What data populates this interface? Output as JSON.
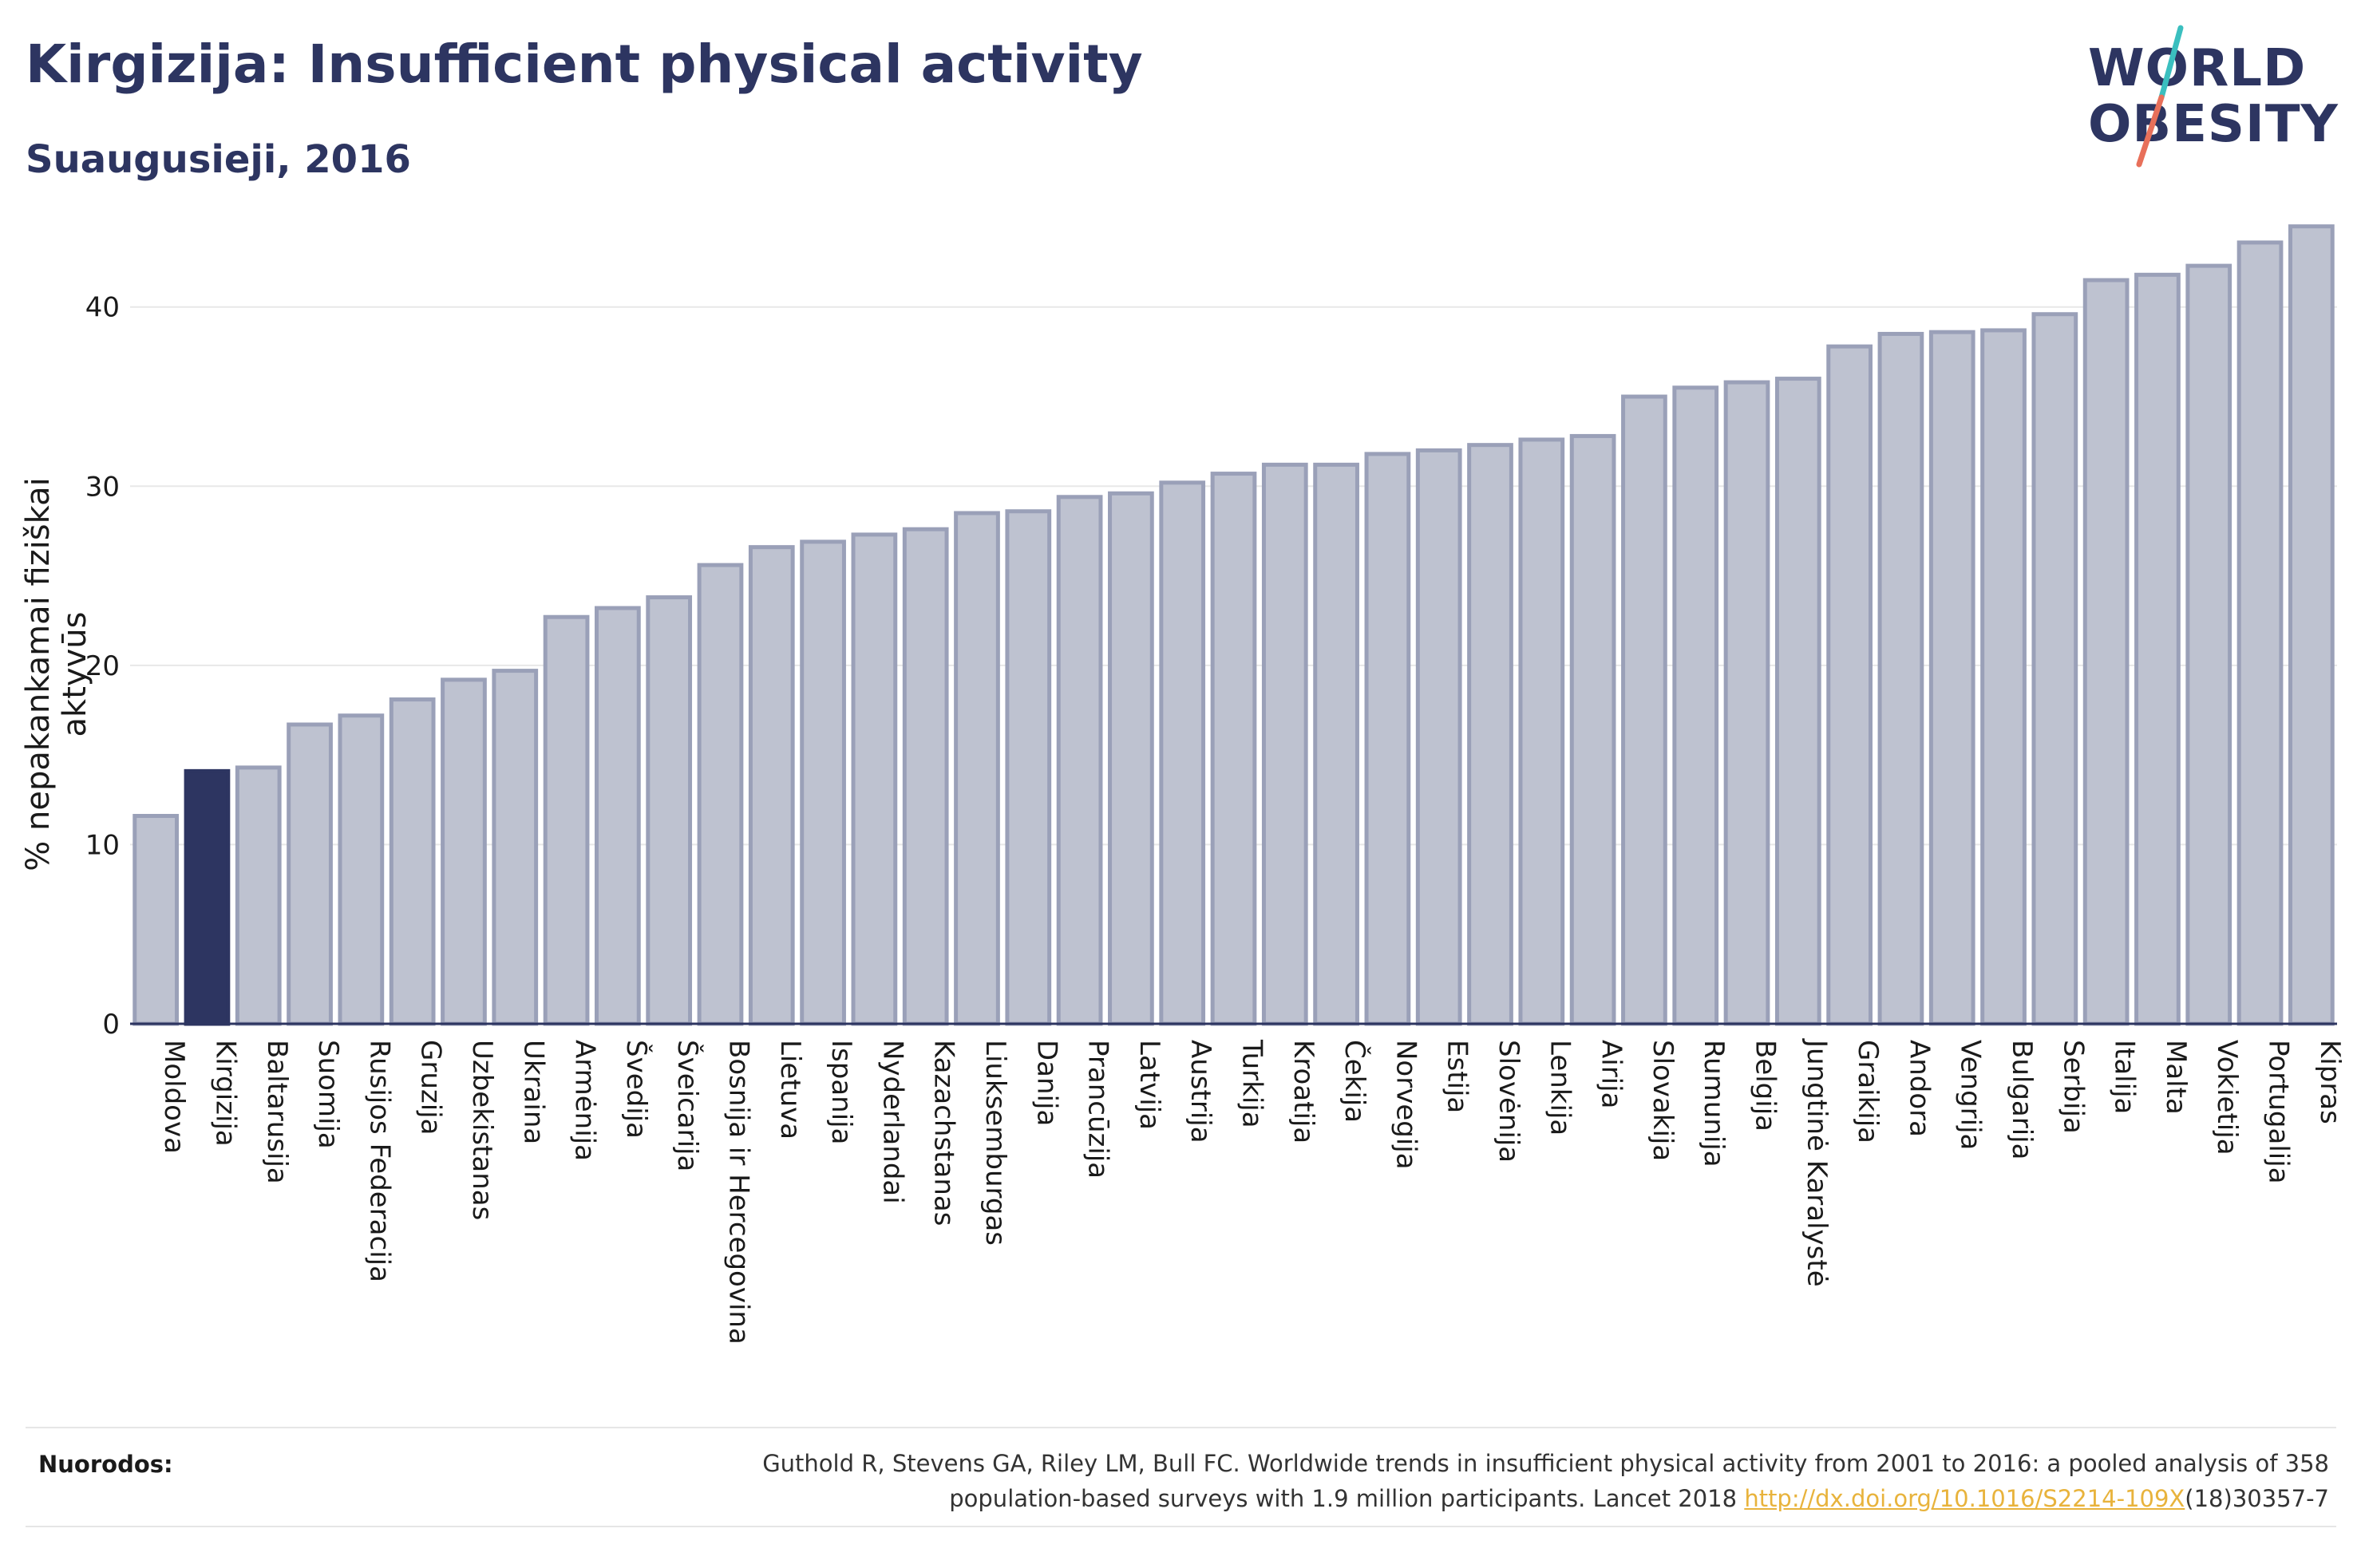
{
  "header": {
    "title": "Kirgizija: Insufficient physical activity",
    "subtitle": "Suaugusieji, 2016"
  },
  "logo": {
    "line1": "WORLD",
    "line2": "OBESITY",
    "colors": {
      "text": "#2d3561",
      "slash_top": "#3bbfbf",
      "slash_bottom": "#e8705a"
    }
  },
  "colors": {
    "bar": "#bec2d0",
    "bar_border": "#9aa0b8",
    "highlight": "#2d3561",
    "axis": "#2d3561",
    "grid": "#e8e8e8",
    "text": "#1a1a1a"
  },
  "chart_data": {
    "type": "bar",
    "ylabel": "% nepakankamai fiziškai aktyvūs",
    "xlabel": "",
    "ylim": [
      0,
      46
    ],
    "yticks": [
      0,
      10,
      20,
      30,
      40
    ],
    "grid": true,
    "highlight": "Kirgizija",
    "categories": [
      "Moldova",
      "Kirgizija",
      "Baltarusija",
      "Suomija",
      "Rusijos Federacija",
      "Gruzija",
      "Uzbekistanas",
      "Ukraina",
      "Armėnija",
      "Švedija",
      "Šveicarija",
      "Bosnija ir Hercegovina",
      "Lietuva",
      "Ispanija",
      "Nyderlandai",
      "Kazachstanas",
      "Liuksemburgas",
      "Danija",
      "Prancūzija",
      "Latvija",
      "Austrija",
      "Turkija",
      "Kroatija",
      "Čekija",
      "Norvegija",
      "Estija",
      "Slovėnija",
      "Lenkija",
      "Airija",
      "Slovakija",
      "Rumunija",
      "Belgija",
      "Jungtinė Karalystė",
      "Graikija",
      "Andora",
      "Vengrija",
      "Bulgarija",
      "Serbija",
      "Italija",
      "Malta",
      "Vokietija",
      "Portugalija",
      "Kipras"
    ],
    "values": [
      11.6,
      14.1,
      14.3,
      16.7,
      17.2,
      18.1,
      19.2,
      19.7,
      22.7,
      23.2,
      23.8,
      25.6,
      26.6,
      26.9,
      27.3,
      27.6,
      28.5,
      28.6,
      29.4,
      29.6,
      30.2,
      30.7,
      31.2,
      31.2,
      31.8,
      32.0,
      32.3,
      32.6,
      32.8,
      35.0,
      35.5,
      35.8,
      36.0,
      37.8,
      38.5,
      38.6,
      38.7,
      39.6,
      41.5,
      41.8,
      42.3,
      43.6,
      44.5
    ]
  },
  "footer": {
    "label": "Nuorodos:",
    "citation_line1": "Guthold R, Stevens GA, Riley LM, Bull FC. Worldwide trends in insufficient physical activity from 2001 to 2016: a pooled analysis of 358",
    "citation_line2_prefix": "population-based surveys with 1.9 million participants. Lancet 2018 ",
    "link_text": "http://dx.doi.org/10.1016/S2214-109X",
    "citation_line2_suffix": "(18)30357-7"
  }
}
